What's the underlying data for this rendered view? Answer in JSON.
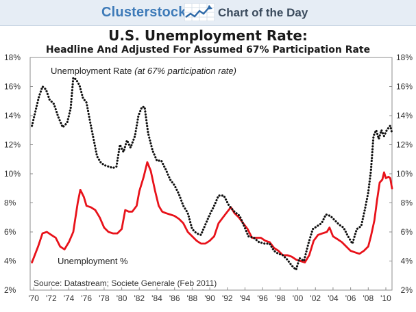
{
  "header": {
    "brand": "Clusterstock",
    "tagline": "Chart of the Day",
    "logo_icon": "trending-chart-icon"
  },
  "chart_data": {
    "type": "line",
    "title": "U.S. Unemployment Rate:",
    "subtitle": "Headline And Adjusted For Assumed 67% Participation Rate",
    "xlabel": "",
    "ylabel": "",
    "xlim": [
      1969.6,
      2010.7
    ],
    "ylim": [
      2,
      18
    ],
    "y_ticks": [
      2,
      4,
      6,
      8,
      10,
      12,
      14,
      16,
      18
    ],
    "y_tick_labels": [
      "2%",
      "4%",
      "6%",
      "8%",
      "10%",
      "12%",
      "14%",
      "16%",
      "18%"
    ],
    "x_ticks": [
      1970,
      1972,
      1974,
      1976,
      1978,
      1980,
      1982,
      1984,
      1986,
      1988,
      1990,
      1992,
      1994,
      1996,
      1998,
      2000,
      2002,
      2004,
      2006,
      2008,
      2010
    ],
    "x_tick_labels": [
      "'70",
      "'72",
      "'74",
      "'76",
      "'78",
      "'80",
      "'82",
      "'84",
      "'86",
      "'88",
      "'90",
      "'92",
      "'94",
      "'96",
      "'98",
      "'00",
      "'02",
      "'04",
      "'06",
      "'08",
      "'10"
    ],
    "grid": false,
    "legend": "none",
    "secondary_y_axis": true,
    "annotations": {
      "adjusted_label_plain": "Unemployment Rate",
      "adjusted_label_italic": "(at 67% participation rate)",
      "headline_label": "Unemployment %",
      "source": "Source: Datastream; Societe Generale (Feb 2011)"
    },
    "series": [
      {
        "label_key": "headline",
        "color": "#e8121a",
        "style": "solid",
        "points": [
          [
            1969.8,
            3.9
          ],
          [
            1970.5,
            5.0
          ],
          [
            1971.0,
            5.9
          ],
          [
            1971.5,
            6.0
          ],
          [
            1972.0,
            5.8
          ],
          [
            1972.5,
            5.6
          ],
          [
            1973.0,
            5.0
          ],
          [
            1973.5,
            4.8
          ],
          [
            1974.0,
            5.3
          ],
          [
            1974.5,
            6.0
          ],
          [
            1975.0,
            8.0
          ],
          [
            1975.3,
            8.9
          ],
          [
            1975.7,
            8.4
          ],
          [
            1976.0,
            7.8
          ],
          [
            1976.5,
            7.7
          ],
          [
            1977.0,
            7.5
          ],
          [
            1977.5,
            7.0
          ],
          [
            1978.0,
            6.3
          ],
          [
            1978.5,
            6.0
          ],
          [
            1979.0,
            5.9
          ],
          [
            1979.5,
            5.9
          ],
          [
            1980.0,
            6.2
          ],
          [
            1980.4,
            7.5
          ],
          [
            1980.8,
            7.4
          ],
          [
            1981.2,
            7.4
          ],
          [
            1981.7,
            7.8
          ],
          [
            1982.0,
            8.8
          ],
          [
            1982.5,
            9.8
          ],
          [
            1982.9,
            10.8
          ],
          [
            1983.3,
            10.2
          ],
          [
            1983.8,
            8.8
          ],
          [
            1984.2,
            7.8
          ],
          [
            1984.6,
            7.4
          ],
          [
            1985.0,
            7.3
          ],
          [
            1985.5,
            7.2
          ],
          [
            1986.0,
            7.1
          ],
          [
            1986.5,
            6.9
          ],
          [
            1987.0,
            6.6
          ],
          [
            1987.5,
            6.0
          ],
          [
            1988.0,
            5.7
          ],
          [
            1988.5,
            5.4
          ],
          [
            1989.0,
            5.2
          ],
          [
            1989.5,
            5.2
          ],
          [
            1990.0,
            5.4
          ],
          [
            1990.5,
            5.7
          ],
          [
            1991.0,
            6.6
          ],
          [
            1991.5,
            7.0
          ],
          [
            1992.0,
            7.4
          ],
          [
            1992.4,
            7.7
          ],
          [
            1992.8,
            7.3
          ],
          [
            1993.3,
            7.0
          ],
          [
            1993.8,
            6.6
          ],
          [
            1994.3,
            6.2
          ],
          [
            1994.8,
            5.6
          ],
          [
            1995.3,
            5.6
          ],
          [
            1995.8,
            5.6
          ],
          [
            1996.3,
            5.4
          ],
          [
            1996.8,
            5.3
          ],
          [
            1997.3,
            4.9
          ],
          [
            1997.8,
            4.7
          ],
          [
            1998.3,
            4.4
          ],
          [
            1998.8,
            4.4
          ],
          [
            1999.3,
            4.3
          ],
          [
            1999.8,
            4.1
          ],
          [
            2000.3,
            4.0
          ],
          [
            2000.8,
            3.9
          ],
          [
            2001.3,
            4.4
          ],
          [
            2001.8,
            5.4
          ],
          [
            2002.3,
            5.8
          ],
          [
            2002.8,
            5.9
          ],
          [
            2003.3,
            6.0
          ],
          [
            2003.6,
            6.3
          ],
          [
            2004.0,
            5.7
          ],
          [
            2004.5,
            5.5
          ],
          [
            2005.0,
            5.3
          ],
          [
            2005.5,
            5.0
          ],
          [
            2006.0,
            4.7
          ],
          [
            2006.5,
            4.6
          ],
          [
            2007.0,
            4.5
          ],
          [
            2007.5,
            4.7
          ],
          [
            2008.0,
            5.0
          ],
          [
            2008.3,
            5.7
          ],
          [
            2008.7,
            6.8
          ],
          [
            2009.0,
            8.2
          ],
          [
            2009.3,
            9.4
          ],
          [
            2009.6,
            9.6
          ],
          [
            2009.8,
            10.1
          ],
          [
            2010.0,
            9.7
          ],
          [
            2010.3,
            9.8
          ],
          [
            2010.5,
            9.7
          ],
          [
            2010.7,
            9.0
          ]
        ]
      },
      {
        "label_key": "adjusted",
        "color": "#111111",
        "style": "dotted",
        "points": [
          [
            1969.8,
            13.3
          ],
          [
            1970.2,
            14.3
          ],
          [
            1970.6,
            15.3
          ],
          [
            1971.0,
            16.0
          ],
          [
            1971.4,
            15.8
          ],
          [
            1971.8,
            15.1
          ],
          [
            1972.3,
            14.8
          ],
          [
            1972.8,
            13.9
          ],
          [
            1973.3,
            13.2
          ],
          [
            1973.8,
            13.5
          ],
          [
            1974.2,
            14.5
          ],
          [
            1974.5,
            16.6
          ],
          [
            1974.8,
            16.5
          ],
          [
            1975.2,
            16.1
          ],
          [
            1975.6,
            15.2
          ],
          [
            1976.0,
            14.9
          ],
          [
            1976.4,
            13.6
          ],
          [
            1976.8,
            12.4
          ],
          [
            1977.2,
            11.2
          ],
          [
            1977.6,
            10.8
          ],
          [
            1978.0,
            10.6
          ],
          [
            1978.5,
            10.5
          ],
          [
            1979.0,
            10.4
          ],
          [
            1979.4,
            10.5
          ],
          [
            1979.8,
            12.0
          ],
          [
            1980.2,
            11.5
          ],
          [
            1980.6,
            12.3
          ],
          [
            1981.0,
            11.8
          ],
          [
            1981.5,
            12.6
          ],
          [
            1981.9,
            14.0
          ],
          [
            1982.3,
            14.6
          ],
          [
            1982.6,
            14.6
          ],
          [
            1983.0,
            12.8
          ],
          [
            1983.5,
            11.6
          ],
          [
            1984.0,
            10.9
          ],
          [
            1984.5,
            10.9
          ],
          [
            1985.0,
            10.3
          ],
          [
            1985.5,
            9.6
          ],
          [
            1986.0,
            9.2
          ],
          [
            1986.5,
            8.6
          ],
          [
            1987.0,
            7.8
          ],
          [
            1987.5,
            7.3
          ],
          [
            1988.0,
            6.2
          ],
          [
            1988.5,
            5.9
          ],
          [
            1989.0,
            5.8
          ],
          [
            1989.5,
            6.5
          ],
          [
            1990.0,
            7.2
          ],
          [
            1990.5,
            7.8
          ],
          [
            1991.0,
            8.5
          ],
          [
            1991.6,
            8.5
          ],
          [
            1992.2,
            7.8
          ],
          [
            1992.8,
            7.4
          ],
          [
            1993.4,
            7.1
          ],
          [
            1993.9,
            6.4
          ],
          [
            1994.4,
            5.7
          ],
          [
            1995.0,
            5.6
          ],
          [
            1995.6,
            5.3
          ],
          [
            1996.2,
            5.2
          ],
          [
            1996.8,
            5.2
          ],
          [
            1997.3,
            4.7
          ],
          [
            1997.8,
            4.5
          ],
          [
            1998.3,
            4.4
          ],
          [
            1998.8,
            4.1
          ],
          [
            1999.3,
            3.7
          ],
          [
            1999.8,
            3.4
          ],
          [
            2000.2,
            4.2
          ],
          [
            2000.7,
            4.0
          ],
          [
            2001.2,
            5.2
          ],
          [
            2001.7,
            6.2
          ],
          [
            2002.2,
            6.4
          ],
          [
            2002.7,
            6.6
          ],
          [
            2003.2,
            7.2
          ],
          [
            2003.7,
            7.1
          ],
          [
            2004.2,
            6.8
          ],
          [
            2004.7,
            6.5
          ],
          [
            2005.2,
            6.3
          ],
          [
            2005.7,
            5.7
          ],
          [
            2006.2,
            5.2
          ],
          [
            2006.7,
            6.2
          ],
          [
            2007.2,
            6.4
          ],
          [
            2007.6,
            7.5
          ],
          [
            2008.0,
            8.7
          ],
          [
            2008.3,
            10.2
          ],
          [
            2008.6,
            12.6
          ],
          [
            2008.9,
            13.0
          ],
          [
            2009.2,
            12.4
          ],
          [
            2009.5,
            13.0
          ],
          [
            2009.8,
            12.6
          ],
          [
            2010.1,
            13.0
          ],
          [
            2010.5,
            13.3
          ],
          [
            2010.7,
            12.8
          ]
        ]
      }
    ]
  }
}
